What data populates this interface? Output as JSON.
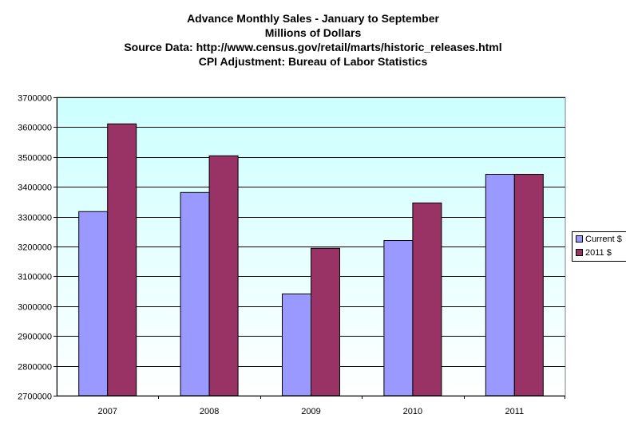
{
  "chart_data": {
    "type": "bar",
    "title_lines": [
      "Advance Monthly Sales - January to September",
      "Millions of Dollars",
      "Source Data: http://www.census.gov/retail/marts/historic_releases.html",
      "CPI Adjustment: Bureau of Labor Statistics"
    ],
    "categories": [
      "2007",
      "2008",
      "2009",
      "2010",
      "2011"
    ],
    "series": [
      {
        "name": "Current $",
        "color": "#9999ff",
        "values": [
          3317000,
          3381000,
          3041000,
          3220000,
          3442000
        ]
      },
      {
        "name": "2011 $",
        "color": "#993366",
        "values": [
          3611000,
          3504000,
          3194000,
          3346000,
          3442000
        ]
      }
    ],
    "ylim": [
      2700000,
      3700000
    ],
    "yticks": [
      "2700000",
      "2800000",
      "2900000",
      "3000000",
      "3100000",
      "3200000",
      "3300000",
      "3400000",
      "3500000",
      "3600000",
      "3700000"
    ],
    "grid": true,
    "legend_position": "right",
    "plot_background": [
      "#ccffff",
      "#ffffff"
    ]
  }
}
